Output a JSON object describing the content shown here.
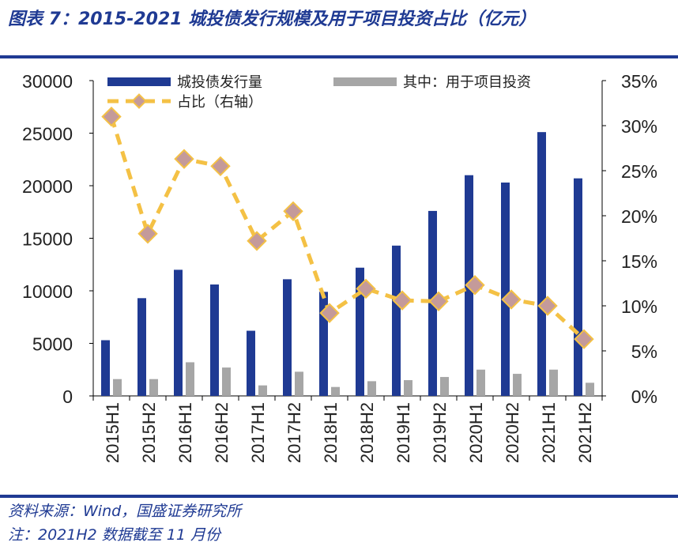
{
  "title": "图表 7：2015-2021 城投债发行规模及用于项目投资占比（亿元）",
  "footer": {
    "source": "资料来源：Wind，国盛证券研究所",
    "note": "注：2021H2 数据截至 11 月份"
  },
  "colors": {
    "accent": "#1f3a93",
    "bar_primary": "#1f3a93",
    "bar_secondary": "#a6a6a6",
    "line": "#f4c145",
    "marker": "#c49a9a"
  },
  "chart_data": {
    "type": "bar",
    "categories": [
      "2015H1",
      "2015H2",
      "2016H1",
      "2016H2",
      "2017H1",
      "2017H2",
      "2018H1",
      "2018H2",
      "2019H1",
      "2019H2",
      "2020H1",
      "2020H2",
      "2021H1",
      "2021H2"
    ],
    "series": [
      {
        "name": "城投债发行量",
        "type": "bar",
        "axis": "left",
        "values": [
          5300,
          9300,
          12000,
          10600,
          6200,
          11100,
          9900,
          12200,
          14300,
          17600,
          21000,
          20300,
          25100,
          20700
        ]
      },
      {
        "name": "其中：用于项目投资",
        "type": "bar",
        "axis": "left",
        "values": [
          1600,
          1600,
          3200,
          2700,
          1000,
          2300,
          850,
          1400,
          1500,
          1800,
          2500,
          2100,
          2500,
          1250
        ]
      },
      {
        "name": "占比（右轴）",
        "type": "line",
        "axis": "right",
        "values": [
          31,
          18,
          26.3,
          25.5,
          17.2,
          20.5,
          9.2,
          11.9,
          10.6,
          10.5,
          12.3,
          10.7,
          10,
          6.3
        ]
      }
    ],
    "left_axis": {
      "min": 0,
      "max": 30000,
      "ticks": [
        "0",
        "5000",
        "10000",
        "15000",
        "20000",
        "25000",
        "30000"
      ]
    },
    "right_axis": {
      "min": 0,
      "max": 35,
      "ticks": [
        "0%",
        "5%",
        "10%",
        "15%",
        "20%",
        "25%",
        "30%",
        "35%"
      ]
    },
    "legend_position": "top",
    "grid": false
  }
}
